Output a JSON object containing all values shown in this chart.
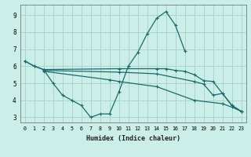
{
  "xlabel": "Humidex (Indice chaleur)",
  "bg_color": "#cceee8",
  "grid_color": "#aad4cc",
  "line_color": "#1a6b6b",
  "xlim": [
    -0.5,
    23.5
  ],
  "ylim": [
    2.7,
    9.6
  ],
  "xticks": [
    0,
    1,
    2,
    3,
    4,
    5,
    6,
    7,
    8,
    9,
    10,
    11,
    12,
    13,
    14,
    15,
    16,
    17,
    18,
    19,
    20,
    21,
    22,
    23
  ],
  "yticks": [
    3,
    4,
    5,
    6,
    7,
    8,
    9
  ],
  "series": [
    {
      "x": [
        0,
        1,
        2,
        3,
        4,
        5,
        6,
        7,
        8,
        9,
        10,
        11,
        12,
        13,
        14,
        15,
        16,
        17
      ],
      "y": [
        6.3,
        6.0,
        5.8,
        5.0,
        4.3,
        4.0,
        3.7,
        3.0,
        3.2,
        3.2,
        4.5,
        6.0,
        6.8,
        7.9,
        8.8,
        9.2,
        8.4,
        6.9
      ]
    },
    {
      "x": [
        0,
        1,
        2,
        10,
        14,
        15,
        16,
        17,
        18,
        19,
        20,
        21,
        22,
        23
      ],
      "y": [
        6.3,
        6.0,
        5.8,
        5.85,
        5.85,
        5.85,
        5.75,
        5.7,
        5.5,
        5.15,
        5.1,
        4.4,
        3.7,
        3.35
      ]
    },
    {
      "x": [
        2,
        10,
        14,
        18,
        19,
        20,
        21,
        22,
        23
      ],
      "y": [
        5.75,
        5.65,
        5.55,
        5.1,
        4.95,
        4.3,
        4.4,
        3.7,
        3.35
      ]
    },
    {
      "x": [
        2,
        9,
        10,
        14,
        18,
        21,
        22,
        23
      ],
      "y": [
        5.7,
        5.2,
        5.1,
        4.8,
        4.0,
        3.8,
        3.6,
        3.35
      ]
    }
  ]
}
